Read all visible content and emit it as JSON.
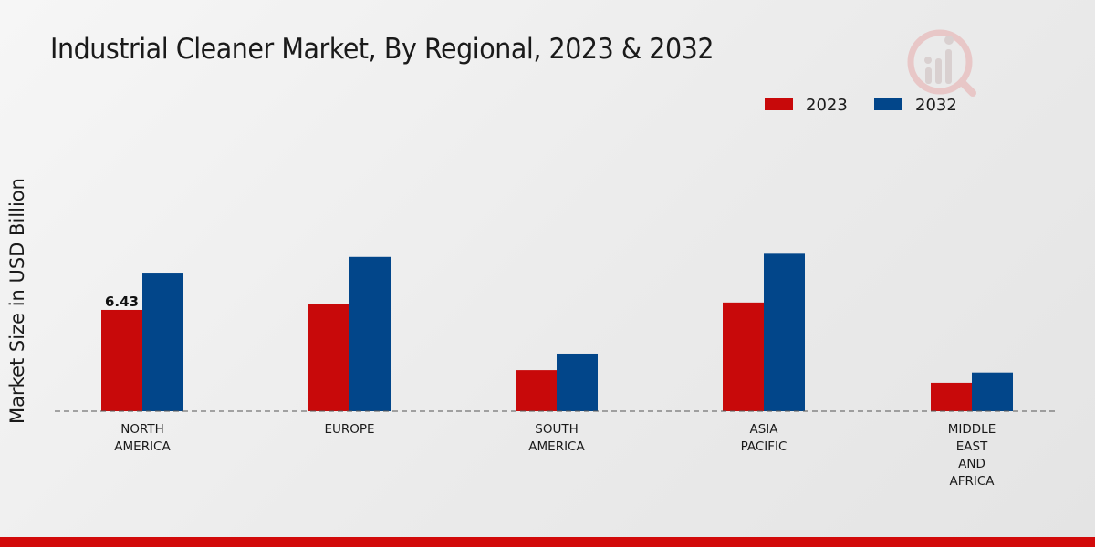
{
  "chart_data": {
    "type": "bar",
    "title": "Industrial Cleaner Market, By Regional, 2023 & 2032",
    "ylabel": "Market Size in USD Billion",
    "xlabel": "",
    "categories": [
      [
        "NORTH",
        "AMERICA"
      ],
      [
        "EUROPE"
      ],
      [
        "SOUTH",
        "AMERICA"
      ],
      [
        "ASIA",
        "PACIFIC"
      ],
      [
        "MIDDLE",
        "EAST",
        "AND",
        "AFRICA"
      ]
    ],
    "series": [
      {
        "name": "2023",
        "color": "#c8090a",
        "values": [
          6.43,
          6.8,
          2.6,
          6.9,
          1.8
        ]
      },
      {
        "name": "2032",
        "color": "#02468a",
        "values": [
          8.8,
          9.8,
          3.65,
          10.0,
          2.45
        ]
      }
    ],
    "data_labels": [
      {
        "series": 0,
        "index": 0,
        "text": "6.43"
      }
    ],
    "ylim": [
      0,
      15
    ],
    "grid": false,
    "legend_position": "top-right"
  }
}
